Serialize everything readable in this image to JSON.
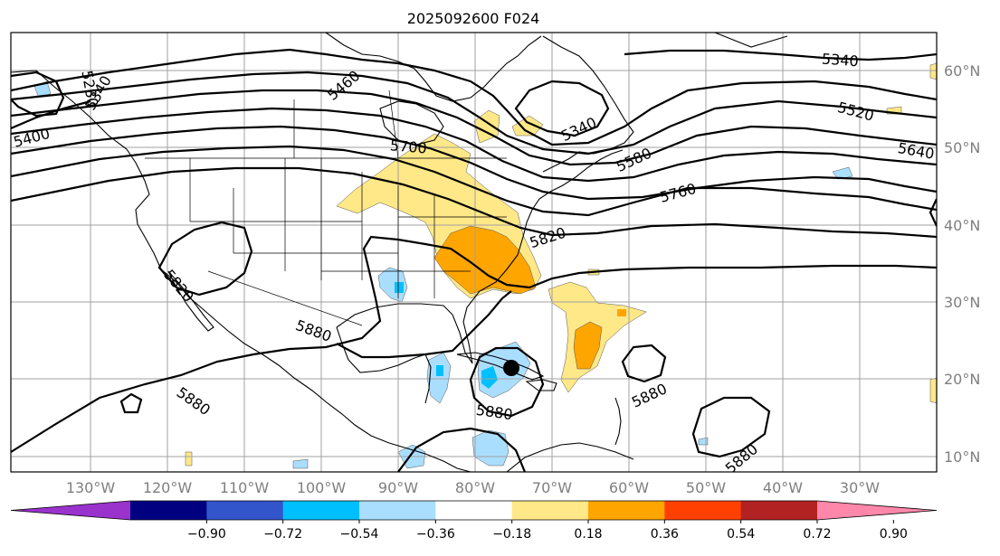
{
  "title": "2025092600 F024",
  "lon_labels": [
    "130°W",
    "120°W",
    "110°W",
    "100°W",
    "90°W",
    "80°W",
    "70°W",
    "60°W",
    "50°W",
    "40°W",
    "30°W"
  ],
  "lat_labels": [
    "60°N",
    "50°N",
    "40°N",
    "30°N",
    "20°N",
    "10°N"
  ],
  "colorbar": {
    "colors": [
      "#9933cc",
      "#000080",
      "#3355cc",
      "#00bfff",
      "#aadeff",
      "#ffffff",
      "#ffe888",
      "#ffa500",
      "#ff4000",
      "#b22222",
      "#ff88aa"
    ],
    "tick_labels": [
      "−0.90",
      "−0.72",
      "−0.54",
      "−0.36",
      "−0.18",
      "0.18",
      "0.36",
      "0.54",
      "0.72",
      "0.90"
    ]
  },
  "contour_labels": [
    {
      "text": "5340",
      "id": "c5340a"
    },
    {
      "text": "5340",
      "id": "c5340b"
    },
    {
      "text": "5520",
      "id": "c5520"
    },
    {
      "text": "5640",
      "id": "c5640"
    },
    {
      "text": "5460",
      "id": "c5460"
    },
    {
      "text": "5400",
      "id": "c5400"
    },
    {
      "text": "5280",
      "id": "c5280"
    },
    {
      "text": "5340",
      "id": "c5340c"
    },
    {
      "text": "5700",
      "id": "c5700"
    },
    {
      "text": "5580",
      "id": "c5580"
    },
    {
      "text": "5760",
      "id": "c5760"
    },
    {
      "text": "5820",
      "id": "c5820a"
    },
    {
      "text": "5820",
      "id": "c5820b"
    },
    {
      "text": "5880",
      "id": "c5880a"
    },
    {
      "text": "5880",
      "id": "c5880b"
    },
    {
      "text": "5880",
      "id": "c5880c"
    },
    {
      "text": "5880",
      "id": "c5880d"
    },
    {
      "text": "5880",
      "id": "c5880e"
    }
  ],
  "storm_marker": {
    "name": "storm-center-dot",
    "color": "#000000"
  }
}
